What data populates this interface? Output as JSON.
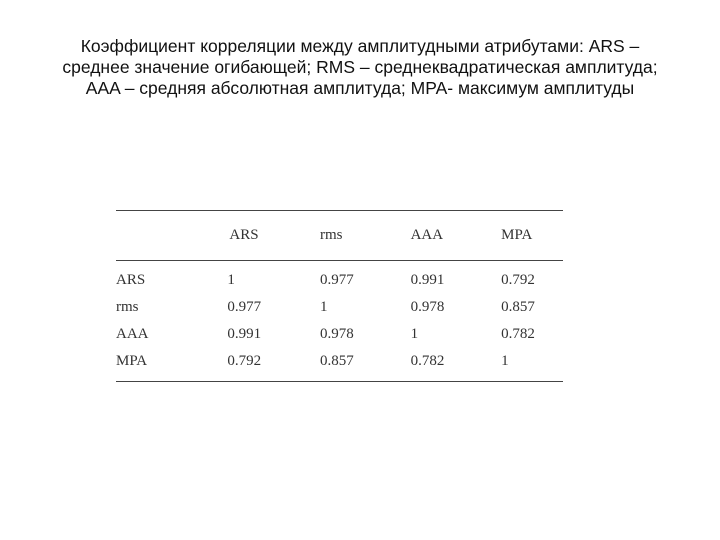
{
  "title": {
    "line1": "Коэффициент корреляции между амплитудными атрибутами: ARS –",
    "line2": "среднее значение огибающей;   RMS – среднеквадратическая амплитуда;",
    "line3": "AAA – средняя абсолютная амплитуда;   MPA- максимум амплитуды"
  },
  "table": {
    "headers": [
      "",
      "ARS",
      "rms",
      "AAA",
      "MPA"
    ],
    "rows": [
      {
        "label": "ARS",
        "values": [
          "1",
          "0.977",
          "0.991",
          "0.792"
        ]
      },
      {
        "label": "rms",
        "values": [
          "0.977",
          "1",
          "0.978",
          "0.857"
        ]
      },
      {
        "label": "AAA",
        "values": [
          "0.991",
          "0.978",
          "1",
          "0.782"
        ]
      },
      {
        "label": "MPA",
        "values": [
          "0.792",
          "0.857",
          "0.782",
          "1"
        ]
      }
    ]
  }
}
